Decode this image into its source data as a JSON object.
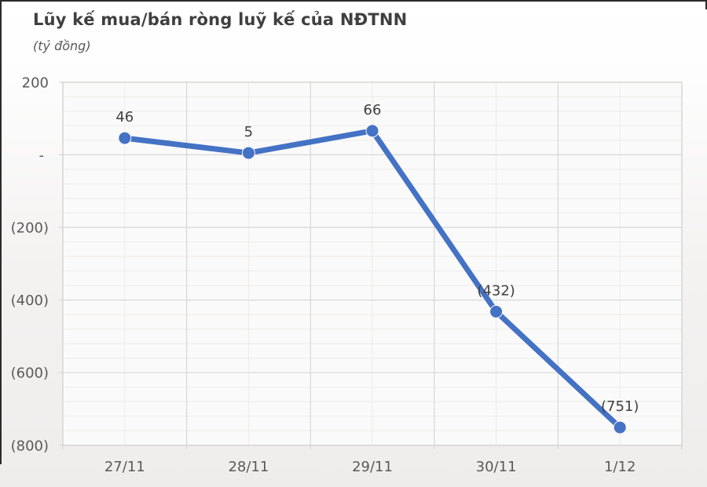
{
  "chart_data": {
    "type": "line",
    "title": "Lũy kế mua/bán ròng luỹ kế của NĐTNN",
    "subtitle": "(tỷ đồng)",
    "categories": [
      "27/11",
      "28/11",
      "29/11",
      "30/11",
      "1/12"
    ],
    "series": [
      {
        "name": "Lũy kế mua/bán ròng của NĐTNN",
        "values": [
          46,
          5,
          66,
          -432,
          -751
        ],
        "data_labels": [
          "46",
          "5",
          "66",
          "(432)",
          "(751)"
        ]
      }
    ],
    "xlabel": "",
    "ylabel": "",
    "ylim": [
      -800,
      200
    ],
    "y_ticks": [
      {
        "value": 200,
        "label": "200"
      },
      {
        "value": 0,
        "label": "-"
      },
      {
        "value": -200,
        "label": "(200)"
      },
      {
        "value": -400,
        "label": "(400)"
      },
      {
        "value": -600,
        "label": "(600)"
      },
      {
        "value": -800,
        "label": "(800)"
      }
    ],
    "y_minor_step": 40,
    "grid": {
      "major": true,
      "minor": true,
      "vertical_major": true,
      "vertical_minor": true
    },
    "legend_position": "none",
    "colors": {
      "line": "#4472c4",
      "marker": "#4472c4",
      "title_text": "#3f3f3f",
      "axis_text": "#595959",
      "data_label_text": "#404040",
      "grid_major": "#d7d7d7",
      "grid_minor": "#ececeb",
      "plot_border": "#d2d2d1",
      "plot_background": "#fbfafa",
      "frame": "#2b2b2b"
    }
  }
}
